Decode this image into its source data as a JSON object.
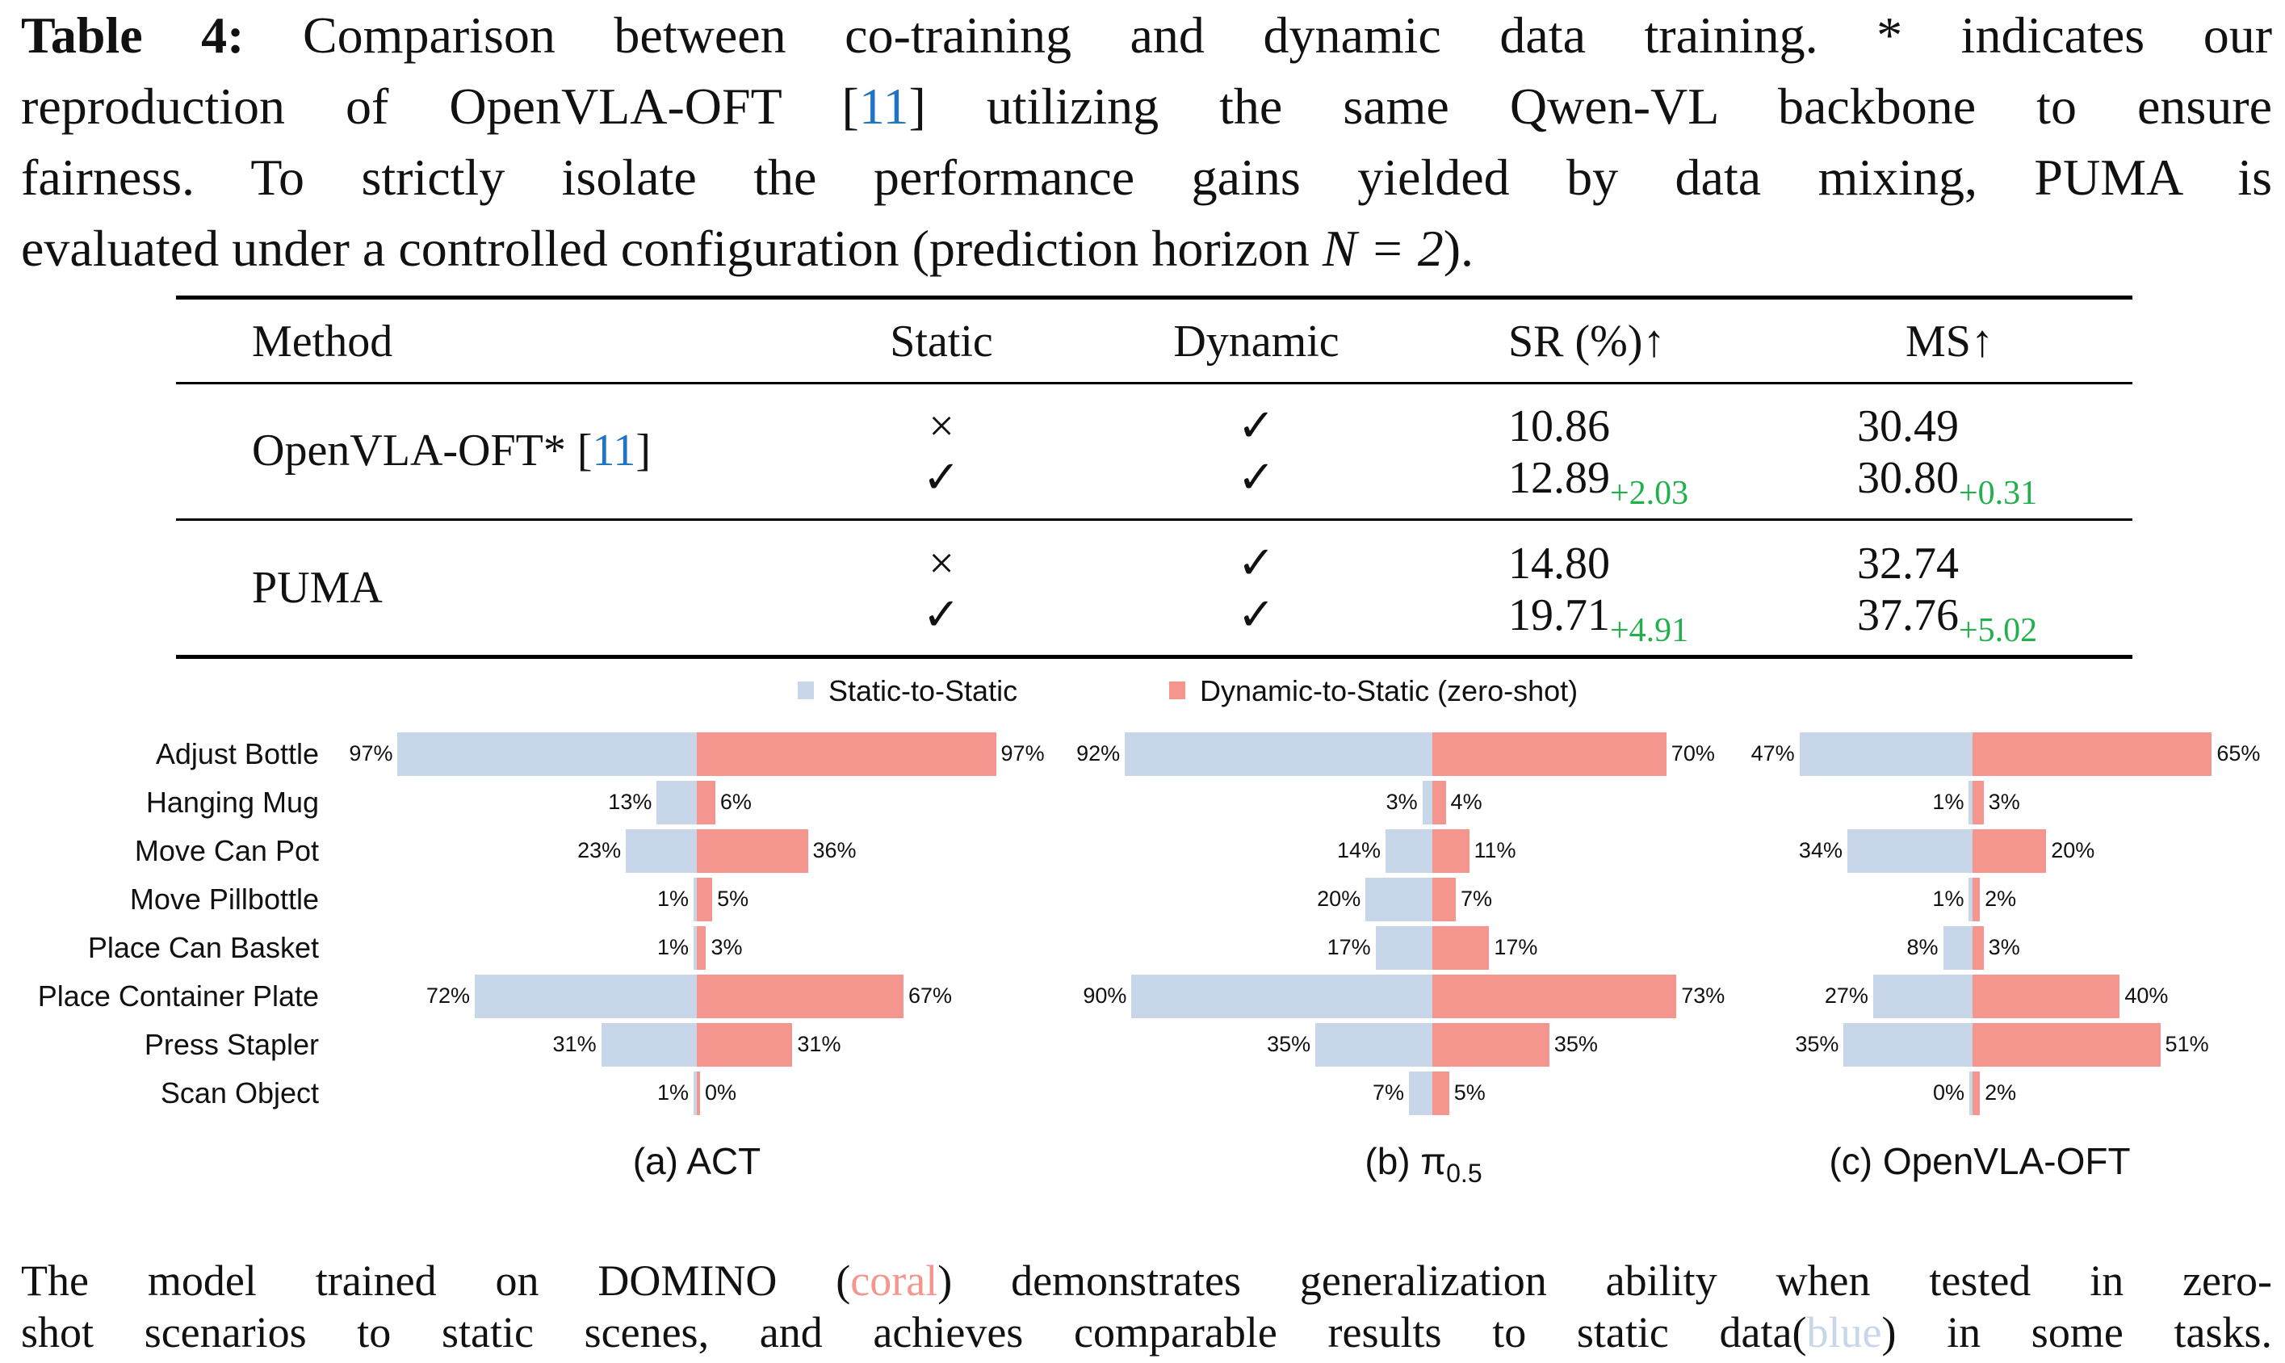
{
  "caption": {
    "label": "Table 4:",
    "line1": " Comparison between co-training and dynamic data training. * indicates our",
    "line2a": "reproduction of OpenVLA-OFT [",
    "ref": "11",
    "line2b": "] utilizing the same Qwen-VL backbone to ensure",
    "line3": "fairness. To strictly isolate the performance gains yielded by data mixing, PUMA is",
    "line4a": "evaluated under a controlled configuration (prediction horizon ",
    "math": "N = 2",
    "line4b": ")."
  },
  "table": {
    "headers": [
      "Method",
      "Static",
      "Dynamic",
      "SR (%)↑",
      "MS↑"
    ],
    "groups": [
      {
        "method": "OpenVLA-OFT* [",
        "ref": "11",
        "method_end": "]",
        "rows": [
          {
            "static": "×",
            "dynamic": "✓",
            "sr": "10.86",
            "sr_delta": "",
            "ms": "30.49",
            "ms_delta": ""
          },
          {
            "static": "✓",
            "dynamic": "✓",
            "sr": "12.89",
            "sr_delta": "+2.03",
            "ms": "30.80",
            "ms_delta": "+0.31"
          }
        ]
      },
      {
        "method": "PUMA",
        "ref": "",
        "method_end": "",
        "rows": [
          {
            "static": "×",
            "dynamic": "✓",
            "sr": "14.80",
            "sr_delta": "",
            "ms": "32.74",
            "ms_delta": ""
          },
          {
            "static": "✓",
            "dynamic": "✓",
            "sr": "19.71",
            "sr_delta": "+4.91",
            "ms": "37.76",
            "ms_delta": "+5.02"
          }
        ]
      }
    ]
  },
  "chart_data": [
    {
      "type": "bar",
      "orientation": "horizontal-diverging",
      "title": "(a)  ACT",
      "categories": [
        "Adjust Bottle",
        "Hanging Mug",
        "Move Can Pot",
        "Move Pillbottle",
        "Place Can Basket",
        "Place Container Plate",
        "Press Stapler",
        "Scan Object"
      ],
      "series": [
        {
          "name": "Static-to-Static",
          "color": "#c8d6ea",
          "values": [
            97,
            13,
            23,
            1,
            1,
            72,
            31,
            1
          ]
        },
        {
          "name": "Dynamic-to-Static (zero-shot)",
          "color": "#f4968e",
          "values": [
            97,
            6,
            36,
            5,
            3,
            67,
            31,
            0
          ]
        }
      ],
      "unit": "%",
      "legend": "top"
    },
    {
      "type": "bar",
      "orientation": "horizontal-diverging",
      "title": "(b) π",
      "title_sub": "0.5",
      "categories": [
        "Adjust Bottle",
        "Hanging Mug",
        "Move Can Pot",
        "Move Pillbottle",
        "Place Can Basket",
        "Place Container Plate",
        "Press Stapler",
        "Scan Object"
      ],
      "series": [
        {
          "name": "Static-to-Static",
          "color": "#c8d6ea",
          "values": [
            92,
            3,
            14,
            20,
            17,
            90,
            35,
            7
          ]
        },
        {
          "name": "Dynamic-to-Static (zero-shot)",
          "color": "#f4968e",
          "values": [
            70,
            4,
            11,
            7,
            17,
            73,
            35,
            5
          ]
        }
      ],
      "unit": "%"
    },
    {
      "type": "bar",
      "orientation": "horizontal-diverging",
      "title": "(c) OpenVLA-OFT",
      "categories": [
        "Adjust Bottle",
        "Hanging Mug",
        "Move Can Pot",
        "Move Pillbottle",
        "Place Can Basket",
        "Place Container Plate",
        "Press Stapler",
        "Scan Object"
      ],
      "series": [
        {
          "name": "Static-to-Static",
          "color": "#c8d6ea",
          "values": [
            47,
            1,
            34,
            1,
            8,
            27,
            35,
            0
          ]
        },
        {
          "name": "Dynamic-to-Static (zero-shot)",
          "color": "#f4968e",
          "values": [
            65,
            3,
            20,
            2,
            3,
            40,
            51,
            2
          ]
        }
      ],
      "unit": "%"
    }
  ],
  "footer": {
    "line1a": "The model trained on DOMINO (",
    "coral": "coral",
    "line1b": ") demonstrates generalization ability when tested in zero-",
    "line2a": "shot scenarios to static scenes, and achieves comparable results to static data(",
    "blue": "blue",
    "line2b": ") in some tasks."
  }
}
